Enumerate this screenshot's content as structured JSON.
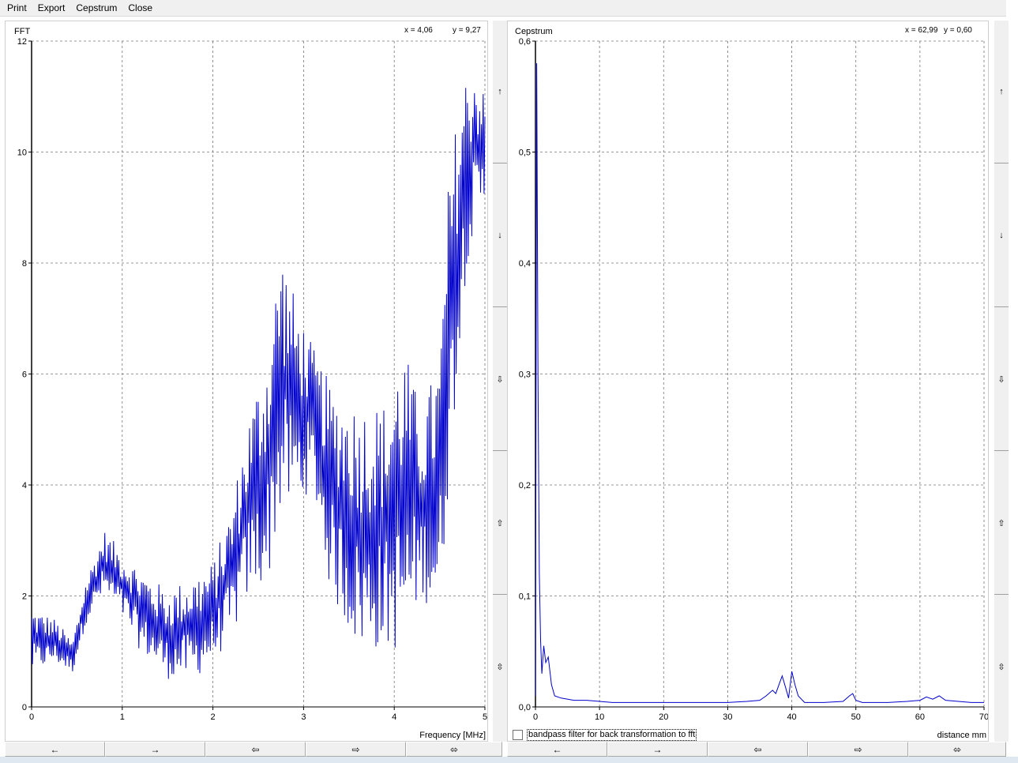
{
  "menu": [
    "Print",
    "Export",
    "Cepstrum",
    "Close"
  ],
  "fft": {
    "title": "FFT",
    "cursor_x": "x = 4,06",
    "cursor_y": "y = 9,27",
    "xlabel": "Frequency [MHz]",
    "xticks": [
      "0",
      "1",
      "2",
      "3",
      "4",
      "5"
    ],
    "yticks": [
      "0",
      "2",
      "4",
      "6",
      "8",
      "10",
      "12"
    ]
  },
  "cepstrum": {
    "title": "Cepstrum",
    "cursor_x": "x = 62,99",
    "cursor_y": "y = 0,60",
    "xlabel": "distance mm",
    "xticks": [
      "0",
      "10",
      "20",
      "30",
      "40",
      "50",
      "60",
      "70"
    ],
    "yticks": [
      "0,0",
      "0,1",
      "0,2",
      "0,3",
      "0,4",
      "0,5",
      "0,6"
    ]
  },
  "bandpass_label": "bandpass filter for back transformation to fft",
  "vstrip_icons": [
    "↑",
    "↓",
    "⇩",
    "⇧",
    "⇳"
  ],
  "hbar_icons": [
    "←",
    "→",
    "⇦",
    "⇨",
    "⬄"
  ],
  "line_color": "#0000cc",
  "chart_data": [
    {
      "type": "line",
      "title": "FFT",
      "xlabel": "Frequency [MHz]",
      "ylabel": "",
      "xlim": [
        0,
        5
      ],
      "ylim": [
        0,
        12
      ],
      "grid": true,
      "envelope": {
        "x": [
          0,
          0.25,
          0.45,
          0.6,
          0.8,
          1.0,
          1.2,
          1.5,
          1.8,
          2.0,
          2.2,
          2.4,
          2.6,
          2.75,
          2.9,
          3.1,
          3.3,
          3.6,
          3.9,
          4.1,
          4.3,
          4.5,
          4.6,
          4.7,
          4.8,
          4.9,
          5.0
        ],
        "low": [
          0.6,
          0.8,
          0.6,
          1.5,
          2.0,
          1.6,
          1.0,
          0.5,
          0.5,
          0.8,
          1.2,
          2.0,
          2.2,
          3.5,
          3.5,
          4.0,
          2.0,
          1.0,
          1.0,
          1.0,
          2.0,
          1.5,
          4.0,
          6.0,
          8.0,
          8.5,
          9.0
        ],
        "high": [
          1.8,
          1.6,
          1.2,
          2.3,
          3.2,
          2.8,
          2.5,
          2.1,
          2.4,
          2.6,
          3.6,
          5.3,
          6.5,
          8.4,
          7.4,
          6.5,
          5.8,
          5.5,
          5.5,
          6.6,
          5.3,
          6.4,
          9.5,
          10.8,
          11.5,
          11.7,
          11.0
        ]
      }
    },
    {
      "type": "line",
      "title": "Cepstrum",
      "xlabel": "distance mm",
      "ylabel": "",
      "xlim": [
        0,
        70
      ],
      "ylim": [
        0,
        0.6
      ],
      "grid": true,
      "x": [
        0,
        0.2,
        0.4,
        0.6,
        0.8,
        1.0,
        1.3,
        1.6,
        2.0,
        2.5,
        3.0,
        4,
        6,
        8,
        10,
        12,
        15,
        18,
        20,
        25,
        30,
        33,
        35,
        36,
        37,
        37.5,
        38,
        38.5,
        39,
        39.5,
        40,
        40.5,
        41,
        42,
        45,
        48,
        49,
        49.5,
        50,
        51,
        55,
        58,
        60,
        61,
        62,
        63,
        64,
        66,
        68,
        70
      ],
      "y": [
        0.01,
        0.58,
        0.3,
        0.12,
        0.06,
        0.03,
        0.055,
        0.04,
        0.045,
        0.02,
        0.01,
        0.008,
        0.006,
        0.006,
        0.005,
        0.004,
        0.004,
        0.004,
        0.004,
        0.004,
        0.004,
        0.005,
        0.006,
        0.01,
        0.015,
        0.012,
        0.02,
        0.028,
        0.018,
        0.008,
        0.032,
        0.02,
        0.01,
        0.004,
        0.004,
        0.005,
        0.01,
        0.012,
        0.006,
        0.004,
        0.004,
        0.005,
        0.006,
        0.009,
        0.007,
        0.01,
        0.006,
        0.005,
        0.004,
        0.004
      ]
    }
  ]
}
